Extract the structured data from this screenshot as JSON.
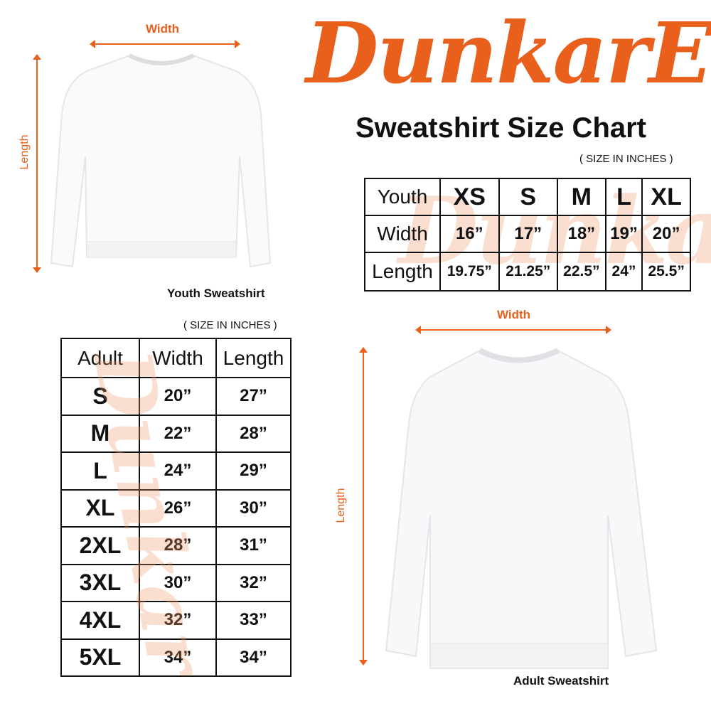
{
  "logo": {
    "text": "DunkarE",
    "color": "#e8601c"
  },
  "title": "Sweatshirt Size Chart",
  "youth": {
    "width_label": "Width",
    "length_label": "Length",
    "caption": "Youth Sweatshirt",
    "units_note": "( SIZE IN INCHES )",
    "table": {
      "header": [
        "Youth",
        "XS",
        "S",
        "M",
        "L",
        "XL"
      ],
      "rows": [
        [
          "Width",
          "16”",
          "17”",
          "18”",
          "19”",
          "20”"
        ],
        [
          "Length",
          "19.75”",
          "21.25”",
          "22.5”",
          "24”",
          "25.5”"
        ]
      ]
    }
  },
  "adult": {
    "width_label": "Width",
    "length_label": "Length",
    "caption": "Adult Sweatshirt",
    "units_note": "( SIZE IN INCHES )",
    "table": {
      "header": [
        "Adult",
        "Width",
        "Length"
      ],
      "rows": [
        [
          "S",
          "20”",
          "27”"
        ],
        [
          "M",
          "22”",
          "28”"
        ],
        [
          "L",
          "24”",
          "29”"
        ],
        [
          "XL",
          "26”",
          "30”"
        ],
        [
          "2XL",
          "28”",
          "31”"
        ],
        [
          "3XL",
          "30”",
          "32”"
        ],
        [
          "4XL",
          "32”",
          "33”"
        ],
        [
          "5XL",
          "34”",
          "34”"
        ]
      ]
    }
  }
}
